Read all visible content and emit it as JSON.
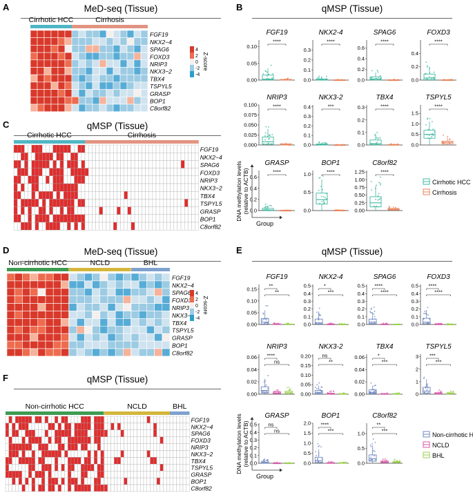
{
  "panels": {
    "A": {
      "letter": "A",
      "title": "MeD-seq (Tissue)",
      "groups": [
        "Cirrhotic HCC",
        "Cirrhosis"
      ],
      "legend_title": "Z-score",
      "legend_ticks": [
        "4",
        "2",
        "0",
        "-2",
        "-4"
      ]
    },
    "B": {
      "letter": "B",
      "title": "qMSP (Tissue)",
      "ylabel_line1": "DNA methylation levels",
      "ylabel_line2": "(relative to ACTB)",
      "xlabel": "Group",
      "legend": [
        "Cirrhotic HCC",
        "Cirrhosis"
      ]
    },
    "C": {
      "letter": "C",
      "title": "qMSP (Tissue)",
      "groups": [
        "Cirrhotic HCC",
        "Cirrhosis"
      ]
    },
    "D": {
      "letter": "D",
      "title": "MeD-seq (Tissue)",
      "groups": [
        "Non-cirrhotic HCC",
        "NCLD",
        "BHL"
      ],
      "legend_title": "Z-score",
      "legend_ticks": [
        "4",
        "2",
        "0",
        "-2",
        "-4"
      ]
    },
    "E": {
      "letter": "E",
      "title": "qMSP (Tissue)",
      "ylabel_line1": "DNA methylation levels",
      "ylabel_line2": "(relative to ACTB)",
      "xlabel": "Group",
      "legend": [
        "Non-cirrhotic HCC",
        "NCLD",
        "BHL"
      ]
    },
    "F": {
      "letter": "F",
      "title": "qMSP (Tissue)",
      "groups": [
        "Non-cirrhotic HCC",
        "NCLD",
        "BHL"
      ]
    }
  },
  "genes": [
    "FGF19",
    "NKX2−4",
    "SPAG6",
    "FOXD3",
    "NRIP3",
    "NKX3−2",
    "TBX4",
    "TSPYL5",
    "GRASP",
    "BOP1",
    "C8orf82"
  ],
  "colors": {
    "hcc": "#3fb8a0",
    "cirrhosis": "#e8835a",
    "cirrhosis_bar": "#e29482",
    "hcc_bar": "#4fb6c6",
    "nchcc": "#3d9b52",
    "ncld": "#d4b73a",
    "bhl": "#7ea1cf",
    "E_hcc": "#7088c0",
    "E_ncld": "#d55aa6",
    "E_bhl": "#9bcf4e",
    "hot": "#e23b2e",
    "cold": "#2c9fc9",
    "methyl": "#e02d2d"
  },
  "chart_data": [
    {
      "panel": "B",
      "type": "box",
      "series": [
        "Cirrhotic HCC",
        "Cirrhosis"
      ],
      "subplots": [
        {
          "gene": "FGF19",
          "ylim": [
            0,
            0.12
          ],
          "ticks": [
            "0.00",
            "0.05",
            "0.10"
          ],
          "tickvals": [
            0,
            0.05,
            0.1
          ],
          "medians": [
            0.003,
            0.0005
          ],
          "q1": [
            0.0005,
            0.0
          ],
          "q3": [
            0.015,
            0.002
          ],
          "whisker_hi": [
            0.035,
            0.005
          ],
          "sig": [
            "****"
          ]
        },
        {
          "gene": "NKX2-4",
          "ylim": [
            0,
            0.4
          ],
          "ticks": [
            "0.0",
            "0.1",
            "0.2",
            "0.3"
          ],
          "tickvals": [
            0,
            0.1,
            0.2,
            0.3
          ],
          "medians": [
            0.002,
            0.0005
          ],
          "q1": [
            0.0,
            0.0
          ],
          "q3": [
            0.01,
            0.002
          ],
          "whisker_hi": [
            0.03,
            0.005
          ],
          "sig": [
            "****"
          ]
        },
        {
          "gene": "SPAG6",
          "ylim": [
            0,
            0.75
          ],
          "ticks": [
            "0.0",
            "0.2",
            "0.4",
            "0.6"
          ],
          "tickvals": [
            0,
            0.2,
            0.4,
            0.6
          ],
          "medians": [
            0.02,
            0.001
          ],
          "q1": [
            0.003,
            0.0
          ],
          "q3": [
            0.06,
            0.004
          ],
          "whisker_hi": [
            0.14,
            0.01
          ],
          "sig": [
            "****"
          ]
        },
        {
          "gene": "FOXD3",
          "ylim": [
            0,
            0.6
          ],
          "ticks": [
            "0.0",
            "0.2",
            "0.4"
          ],
          "tickvals": [
            0,
            0.2,
            0.4
          ],
          "medians": [
            0.03,
            0.001
          ],
          "q1": [
            0.005,
            0.0
          ],
          "q3": [
            0.09,
            0.004
          ],
          "whisker_hi": [
            0.2,
            0.01
          ],
          "sig": [
            "****"
          ]
        },
        {
          "gene": "NRIP3",
          "ylim": [
            0,
            0.1
          ],
          "ticks": [
            "0.000",
            "0.025",
            "0.050",
            "0.075",
            "0.100"
          ],
          "tickvals": [
            0,
            0.025,
            0.05,
            0.075,
            0.1
          ],
          "medians": [
            0.008,
            0.001
          ],
          "q1": [
            0.002,
            0.0
          ],
          "q3": [
            0.02,
            0.003
          ],
          "whisker_hi": [
            0.04,
            0.006
          ],
          "sig": [
            "****"
          ]
        },
        {
          "gene": "NKX3-2",
          "ylim": [
            0,
            0.42
          ],
          "ticks": [
            "0.0",
            "0.1",
            "0.2",
            "0.3",
            "0.4"
          ],
          "tickvals": [
            0,
            0.1,
            0.2,
            0.3,
            0.4
          ],
          "medians": [
            0.003,
            0.0005
          ],
          "q1": [
            0.0,
            0.0
          ],
          "q3": [
            0.01,
            0.002
          ],
          "whisker_hi": [
            0.025,
            0.004
          ],
          "sig": [
            "***"
          ]
        },
        {
          "gene": "TBX4",
          "ylim": [
            0,
            0.32
          ],
          "ticks": [
            "0.0",
            "0.1",
            "0.2",
            "0.3"
          ],
          "tickvals": [
            0,
            0.1,
            0.2,
            0.3
          ],
          "medians": [
            0.01,
            0.001
          ],
          "q1": [
            0.002,
            0.0
          ],
          "q3": [
            0.04,
            0.004
          ],
          "whisker_hi": [
            0.09,
            0.008
          ],
          "sig": [
            "****"
          ]
        },
        {
          "gene": "TSPYL5",
          "ylim": [
            0,
            1.9
          ],
          "ticks": [
            "0.0",
            "0.5",
            "1.0",
            "1.5"
          ],
          "tickvals": [
            0,
            0.5,
            1.0,
            1.5
          ],
          "medians": [
            0.5,
            0.12
          ],
          "q1": [
            0.32,
            0.06
          ],
          "q3": [
            0.7,
            0.18
          ],
          "whisker_hi": [
            1.1,
            0.35
          ],
          "sig": [
            "****"
          ]
        },
        {
          "gene": "GRASP",
          "ylim": [
            0,
            0.72
          ],
          "ticks": [
            "0.0",
            "0.2",
            "0.4",
            "0.6"
          ],
          "tickvals": [
            0,
            0.2,
            0.4,
            0.6
          ],
          "medians": [
            0.01,
            0.001
          ],
          "q1": [
            0.002,
            0.0
          ],
          "q3": [
            0.04,
            0.004
          ],
          "whisker_hi": [
            0.09,
            0.008
          ],
          "sig": [
            "****"
          ]
        },
        {
          "gene": "BOP1",
          "ylim": [
            0,
            1.1
          ],
          "ticks": [
            "0.0",
            "0.5",
            "1.0"
          ],
          "tickvals": [
            0,
            0.5,
            1.0
          ],
          "medians": [
            0.3,
            0.005
          ],
          "q1": [
            0.18,
            0.0
          ],
          "q3": [
            0.48,
            0.01
          ],
          "whisker_hi": [
            0.85,
            0.02
          ],
          "sig": [
            "****"
          ]
        },
        {
          "gene": "C8orf82",
          "ylim": [
            0,
            1.3
          ],
          "ticks": [
            "0.00",
            "0.25",
            "0.50",
            "0.75",
            "1.00",
            "1.25"
          ],
          "tickvals": [
            0,
            0.25,
            0.5,
            0.75,
            1.0,
            1.25
          ],
          "medians": [
            0.25,
            0.04
          ],
          "q1": [
            0.12,
            0.02
          ],
          "q3": [
            0.45,
            0.07
          ],
          "whisker_hi": [
            0.8,
            0.14
          ],
          "sig": [
            "****"
          ]
        }
      ]
    },
    {
      "panel": "E",
      "type": "box",
      "series": [
        "Non-cirrhotic HCC",
        "NCLD",
        "BHL"
      ],
      "subplots": [
        {
          "gene": "FGF19",
          "ylim": [
            0,
            0.17
          ],
          "ticks": [
            "0.00",
            "0.05",
            "0.10",
            "0.15"
          ],
          "tickvals": [
            0,
            0.05,
            0.1,
            0.15
          ],
          "medians": [
            0.01,
            0.001,
            0.001
          ],
          "q1": [
            0.002,
            0.0,
            0.0
          ],
          "q3": [
            0.025,
            0.003,
            0.002
          ],
          "whisker_hi": [
            0.06,
            0.006,
            0.004
          ],
          "sig": [
            "**",
            "**"
          ]
        },
        {
          "gene": "NKX2-4",
          "ylim": [
            0,
            0.52
          ],
          "ticks": [
            "0.0",
            "0.1",
            "0.2",
            "0.3",
            "0.4",
            "0.5"
          ],
          "tickvals": [
            0,
            0.1,
            0.2,
            0.3,
            0.4,
            0.5
          ],
          "medians": [
            0.02,
            0.002,
            0.001
          ],
          "q1": [
            0.005,
            0.0,
            0.0
          ],
          "q3": [
            0.07,
            0.006,
            0.004
          ],
          "whisker_hi": [
            0.17,
            0.013,
            0.01
          ],
          "sig": [
            "*",
            "***"
          ]
        },
        {
          "gene": "SPAG6",
          "ylim": [
            0,
            0.52
          ],
          "ticks": [
            "0.0",
            "0.1",
            "0.2",
            "0.3",
            "0.4",
            "0.5"
          ],
          "tickvals": [
            0,
            0.1,
            0.2,
            0.3,
            0.4,
            0.5
          ],
          "medians": [
            0.03,
            0.002,
            0.002
          ],
          "q1": [
            0.01,
            0.0,
            0.0
          ],
          "q3": [
            0.07,
            0.006,
            0.004
          ],
          "whisker_hi": [
            0.16,
            0.012,
            0.008
          ],
          "sig": [
            "****",
            "****"
          ]
        },
        {
          "gene": "FOXD3",
          "ylim": [
            0,
            0.52
          ],
          "ticks": [
            "0.0",
            "0.1",
            "0.2",
            "0.3",
            "0.4",
            "0.5"
          ],
          "tickvals": [
            0,
            0.1,
            0.2,
            0.3,
            0.4,
            0.5
          ],
          "medians": [
            0.03,
            0.002,
            0.002
          ],
          "q1": [
            0.01,
            0.0,
            0.0
          ],
          "q3": [
            0.08,
            0.006,
            0.004
          ],
          "whisker_hi": [
            0.18,
            0.012,
            0.008
          ],
          "sig": [
            "****",
            "****"
          ]
        },
        {
          "gene": "NRIP3",
          "ylim": [
            0,
            0.065
          ],
          "ticks": [
            "0.00",
            "0.02",
            "0.04",
            "0.06"
          ],
          "tickvals": [
            0,
            0.02,
            0.04,
            0.06
          ],
          "medians": [
            0.006,
            0.002,
            0.003
          ],
          "q1": [
            0.002,
            0.001,
            0.001
          ],
          "q3": [
            0.012,
            0.004,
            0.005
          ],
          "whisker_hi": [
            0.025,
            0.008,
            0.008
          ],
          "sig": [
            "****",
            "ns"
          ]
        },
        {
          "gene": "NKX3-2",
          "ylim": [
            0,
            0.21
          ],
          "ticks": [
            "0.00",
            "0.05",
            "0.10",
            "0.15",
            "0.20"
          ],
          "tickvals": [
            0,
            0.05,
            0.1,
            0.15,
            0.2
          ],
          "medians": [
            0.008,
            0.002,
            0.001
          ],
          "q1": [
            0.002,
            0.0,
            0.0
          ],
          "q3": [
            0.02,
            0.005,
            0.003
          ],
          "whisker_hi": [
            0.045,
            0.012,
            0.006
          ],
          "sig": [
            "ns",
            "**"
          ]
        },
        {
          "gene": "TBX4",
          "ylim": [
            0,
            0.065
          ],
          "ticks": [
            "0.00",
            "0.02",
            "0.04",
            "0.06"
          ],
          "tickvals": [
            0,
            0.02,
            0.04,
            0.06
          ],
          "medians": [
            0.003,
            0.0005,
            0.0005
          ],
          "q1": [
            0.001,
            0.0,
            0.0
          ],
          "q3": [
            0.007,
            0.001,
            0.001
          ],
          "whisker_hi": [
            0.014,
            0.002,
            0.002
          ],
          "sig": [
            "*",
            "***"
          ]
        },
        {
          "gene": "TSPYL5",
          "ylim": [
            0,
            3.2
          ],
          "ticks": [
            "0",
            "1",
            "2",
            "3"
          ],
          "tickvals": [
            0,
            1,
            2,
            3
          ],
          "medians": [
            0.25,
            0.06,
            0.06
          ],
          "q1": [
            0.08,
            0.02,
            0.02
          ],
          "q3": [
            0.55,
            0.12,
            0.1
          ],
          "whisker_hi": [
            1.2,
            0.25,
            0.18
          ],
          "sig": [
            "***",
            "***"
          ]
        },
        {
          "gene": "GRASP",
          "ylim": [
            0,
            0.52
          ],
          "ticks": [
            "0.0",
            "0.1",
            "0.2",
            "0.3",
            "0.4",
            "0.5"
          ],
          "tickvals": [
            0,
            0.1,
            0.2,
            0.3,
            0.4,
            0.5
          ],
          "medians": [
            0.004,
            0.001,
            0.001
          ],
          "q1": [
            0.001,
            0.0,
            0.0
          ],
          "q3": [
            0.015,
            0.003,
            0.003
          ],
          "whisker_hi": [
            0.04,
            0.008,
            0.006
          ],
          "sig": [
            "ns",
            "ns"
          ]
        },
        {
          "gene": "BOP1",
          "ylim": [
            0,
            2.0
          ],
          "ticks": [
            "0.0",
            "0.5",
            "1.0",
            "1.5",
            "2.0"
          ],
          "tickvals": [
            0,
            0.5,
            1.0,
            1.5,
            2.0
          ],
          "medians": [
            0.12,
            0.01,
            0.01
          ],
          "q1": [
            0.04,
            0.0,
            0.0
          ],
          "q3": [
            0.3,
            0.03,
            0.03
          ],
          "whisker_hi": [
            0.7,
            0.06,
            0.05
          ],
          "sig": [
            "****",
            "***"
          ]
        },
        {
          "gene": "C8orf82",
          "ylim": [
            0,
            1.35
          ],
          "ticks": [
            "0.0",
            "0.5",
            "1.0"
          ],
          "tickvals": [
            0,
            0.5,
            1.0
          ],
          "medians": [
            0.15,
            0.04,
            0.04
          ],
          "q1": [
            0.07,
            0.02,
            0.02
          ],
          "q3": [
            0.28,
            0.07,
            0.06
          ],
          "whisker_hi": [
            0.6,
            0.13,
            0.1
          ],
          "sig": [
            "**",
            "***"
          ]
        }
      ]
    }
  ]
}
